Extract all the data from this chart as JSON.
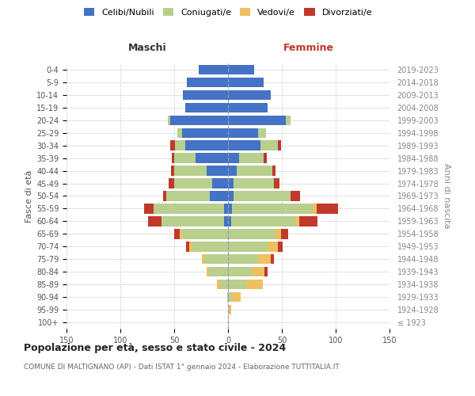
{
  "age_groups": [
    "100+",
    "95-99",
    "90-94",
    "85-89",
    "80-84",
    "75-79",
    "70-74",
    "65-69",
    "60-64",
    "55-59",
    "50-54",
    "45-49",
    "40-44",
    "35-39",
    "30-34",
    "25-29",
    "20-24",
    "15-19",
    "10-14",
    "5-9",
    "0-4"
  ],
  "birth_years": [
    "≤ 1923",
    "1924-1928",
    "1929-1933",
    "1934-1938",
    "1939-1943",
    "1944-1948",
    "1949-1953",
    "1954-1958",
    "1959-1963",
    "1964-1968",
    "1969-1973",
    "1974-1978",
    "1979-1983",
    "1984-1988",
    "1989-1993",
    "1994-1998",
    "1999-2003",
    "2004-2008",
    "2009-2013",
    "2014-2018",
    "2019-2023"
  ],
  "males": {
    "celibi": [
      0,
      0,
      0,
      0,
      0,
      0,
      0,
      0,
      4,
      4,
      17,
      15,
      20,
      30,
      40,
      43,
      54,
      40,
      42,
      38,
      27
    ],
    "coniugati": [
      0,
      0,
      1,
      7,
      18,
      22,
      33,
      43,
      58,
      65,
      40,
      35,
      30,
      20,
      9,
      4,
      2,
      0,
      0,
      0,
      0
    ],
    "vedovi": [
      0,
      0,
      0,
      3,
      2,
      2,
      3,
      2,
      0,
      0,
      0,
      0,
      0,
      0,
      0,
      0,
      0,
      0,
      0,
      0,
      0
    ],
    "divorziati": [
      0,
      0,
      0,
      0,
      0,
      0,
      3,
      5,
      12,
      9,
      3,
      5,
      3,
      2,
      5,
      0,
      0,
      0,
      0,
      0,
      0
    ]
  },
  "females": {
    "nubili": [
      0,
      0,
      0,
      0,
      0,
      0,
      0,
      0,
      3,
      4,
      5,
      5,
      8,
      10,
      30,
      28,
      54,
      37,
      40,
      33,
      24
    ],
    "coniugate": [
      0,
      1,
      4,
      18,
      23,
      28,
      37,
      44,
      60,
      75,
      53,
      38,
      33,
      23,
      16,
      7,
      4,
      0,
      0,
      0,
      0
    ],
    "vedove": [
      1,
      2,
      8,
      14,
      11,
      12,
      9,
      5,
      3,
      3,
      0,
      0,
      0,
      0,
      0,
      0,
      0,
      0,
      0,
      0,
      0
    ],
    "divorziate": [
      0,
      0,
      0,
      0,
      3,
      3,
      5,
      7,
      17,
      20,
      9,
      5,
      3,
      3,
      3,
      0,
      0,
      0,
      0,
      0,
      0
    ]
  },
  "colors": {
    "celibi_nubili": "#4472c4",
    "coniugati": "#b8cf8e",
    "vedovi": "#f0c060",
    "divorziati": "#c0392b"
  },
  "xlim": 150,
  "title": "Popolazione per età, sesso e stato civile - 2024",
  "subtitle": "COMUNE DI MALTIGNANO (AP) - Dati ISTAT 1° gennaio 2024 - Elaborazione TUTTITALIA.IT",
  "ylabel_left": "Fasce di età",
  "ylabel_right": "Anni di nascita",
  "xlabel_maschi": "Maschi",
  "xlabel_femmine": "Femmine",
  "background_color": "#ffffff",
  "grid_color": "#cccccc"
}
